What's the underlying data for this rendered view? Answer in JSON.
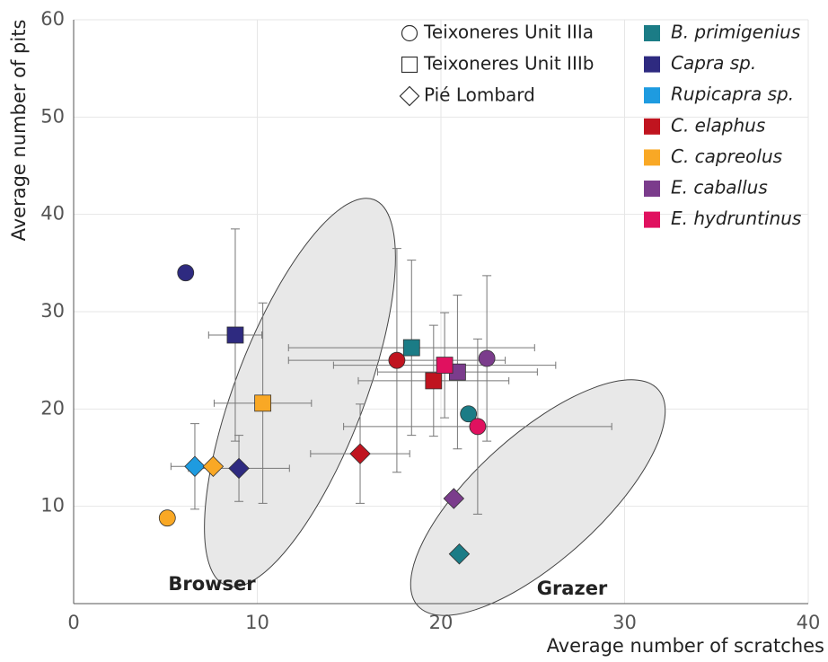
{
  "chart_data": {
    "type": "scatter",
    "x_label": "Average number of scratches",
    "y_label": "Average number of pits",
    "xlim": [
      0,
      40
    ],
    "ylim": [
      0,
      60
    ],
    "xticks": [
      0,
      10,
      20,
      30,
      40
    ],
    "yticks": [
      10,
      20,
      30,
      40,
      50,
      60
    ],
    "grid": true,
    "annotations": [
      "Browser",
      "Grazer"
    ],
    "sites": [
      {
        "name": "Teixoneres Unit IIIa",
        "marker": "circle"
      },
      {
        "name": "Teixoneres Unit IIIb",
        "marker": "square"
      },
      {
        "name": "Pié Lombard",
        "marker": "diamond"
      }
    ],
    "series": [
      {
        "name": "B. primigenius",
        "color": "#1b7c86",
        "x": [
          21.5,
          18.4,
          21.0
        ],
        "y": [
          19.5,
          26.3,
          5.1
        ],
        "xerr": [
          null,
          6.7,
          null
        ],
        "yerr": [
          null,
          9.0,
          null
        ]
      },
      {
        "name": "Capra sp.",
        "color": "#2e2a80",
        "x": [
          6.1,
          8.8,
          9.0
        ],
        "y": [
          34.0,
          27.6,
          13.9
        ],
        "xerr": [
          null,
          1.45,
          2.75
        ],
        "yerr": [
          null,
          10.9,
          3.4
        ]
      },
      {
        "name": "Rupicapra sp.",
        "color": "#1e9be0",
        "x": [
          null,
          null,
          6.6
        ],
        "y": [
          null,
          null,
          14.1
        ],
        "xerr": [
          null,
          null,
          1.3
        ],
        "yerr": [
          null,
          null,
          4.4
        ]
      },
      {
        "name": "C. elaphus",
        "color": "#c0141f",
        "x": [
          17.6,
          19.6,
          15.6
        ],
        "y": [
          25.0,
          22.9,
          15.4
        ],
        "xerr": [
          5.9,
          4.1,
          2.7
        ],
        "yerr": [
          11.5,
          5.7,
          5.1
        ]
      },
      {
        "name": "C. capreolus",
        "color": "#f9a825",
        "x": [
          5.1,
          10.3,
          7.6
        ],
        "y": [
          8.8,
          20.6,
          14.1
        ],
        "xerr": [
          null,
          2.65,
          null
        ],
        "yerr": [
          null,
          10.3,
          null
        ]
      },
      {
        "name": "E. caballus",
        "color": "#7b3c8c",
        "x": [
          22.5,
          20.9,
          20.7
        ],
        "y": [
          25.2,
          23.8,
          10.8
        ],
        "xerr": [
          null,
          4.35,
          null
        ],
        "yerr": [
          8.5,
          7.9,
          null
        ]
      },
      {
        "name": "E. hydruntinus",
        "color": "#e0115f",
        "x": [
          22.0,
          20.2,
          null
        ],
        "y": [
          18.2,
          24.5,
          null
        ],
        "xerr": [
          7.3,
          6.05,
          null
        ],
        "yerr": [
          9.0,
          5.4,
          null
        ]
      }
    ]
  }
}
